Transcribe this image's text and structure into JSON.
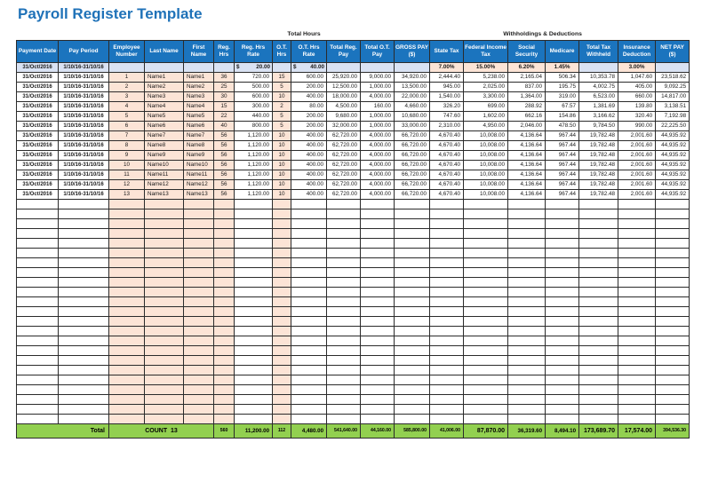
{
  "title": "Payroll Register Template",
  "bands": {
    "total_hours": "Total Hours",
    "withholdings": "Withholdings & Deductions"
  },
  "columns": [
    "Payment Date",
    "Pay Period",
    "Employee Number",
    "Last Name",
    "First Name",
    "Reg. Hrs",
    "Reg. Hrs Rate",
    "O.T. Hrs",
    "O.T. Hrs Rate",
    "Total Reg. Pay",
    "Total O.T. Pay",
    "GROSS PAY ($)",
    "State Tax",
    "Federal Income Tax",
    "Social Security",
    "Medicare",
    "Total Tax Withheld",
    "Insurance Deduction",
    "NET PAY ($)"
  ],
  "rate_row": {
    "payment_date": "31/Oct/2016",
    "pay_period": "1/10/16-31/10/16",
    "currency_symbol": "$",
    "reg_hrs_rate": "20.00",
    "ot_hrs_rate": "40.00",
    "state_tax_pct": "7.00%",
    "federal_income_tax_pct": "15.00%",
    "social_security_pct": "6.20%",
    "medicare_pct": "1.45%",
    "insurance_deduction_pct": "3.00%"
  },
  "rows": [
    {
      "payment_date": "31/Oct/2016",
      "pay_period": "1/10/16-31/10/16",
      "employee_number": "1",
      "last_name": "Name1",
      "first_name": "Name1",
      "reg_hrs": "36",
      "reg_hrs_rate": "720.00",
      "ot_hrs": "15",
      "ot_hrs_rate": "600.00",
      "total_reg_pay": "25,920.00",
      "total_ot_pay": "9,000.00",
      "gross_pay": "34,920.00",
      "state_tax": "2,444.40",
      "federal_income_tax": "5,238.00",
      "social_security": "2,165.04",
      "medicare": "506.34",
      "total_tax_withheld": "10,353.78",
      "insurance_deduction": "1,047.60",
      "net_pay": "23,518.62"
    },
    {
      "payment_date": "31/Oct/2016",
      "pay_period": "1/10/16-31/10/16",
      "employee_number": "2",
      "last_name": "Name2",
      "first_name": "Name2",
      "reg_hrs": "25",
      "reg_hrs_rate": "500.00",
      "ot_hrs": "5",
      "ot_hrs_rate": "200.00",
      "total_reg_pay": "12,500.00",
      "total_ot_pay": "1,000.00",
      "gross_pay": "13,500.00",
      "state_tax": "945.00",
      "federal_income_tax": "2,025.00",
      "social_security": "837.00",
      "medicare": "195.75",
      "total_tax_withheld": "4,002.75",
      "insurance_deduction": "405.00",
      "net_pay": "9,092.25"
    },
    {
      "payment_date": "31/Oct/2016",
      "pay_period": "1/10/16-31/10/16",
      "employee_number": "3",
      "last_name": "Name3",
      "first_name": "Name3",
      "reg_hrs": "30",
      "reg_hrs_rate": "600.00",
      "ot_hrs": "10",
      "ot_hrs_rate": "400.00",
      "total_reg_pay": "18,000.00",
      "total_ot_pay": "4,000.00",
      "gross_pay": "22,000.00",
      "state_tax": "1,540.00",
      "federal_income_tax": "3,300.00",
      "social_security": "1,364.00",
      "medicare": "319.00",
      "total_tax_withheld": "6,523.00",
      "insurance_deduction": "660.00",
      "net_pay": "14,817.00"
    },
    {
      "payment_date": "31/Oct/2016",
      "pay_period": "1/10/16-31/10/16",
      "employee_number": "4",
      "last_name": "Name4",
      "first_name": "Name4",
      "reg_hrs": "15",
      "reg_hrs_rate": "300.00",
      "ot_hrs": "2",
      "ot_hrs_rate": "80.00",
      "total_reg_pay": "4,500.00",
      "total_ot_pay": "160.00",
      "gross_pay": "4,660.00",
      "state_tax": "326.20",
      "federal_income_tax": "699.00",
      "social_security": "288.92",
      "medicare": "67.57",
      "total_tax_withheld": "1,381.69",
      "insurance_deduction": "139.80",
      "net_pay": "3,138.51"
    },
    {
      "payment_date": "31/Oct/2016",
      "pay_period": "1/10/16-31/10/16",
      "employee_number": "5",
      "last_name": "Name5",
      "first_name": "Name5",
      "reg_hrs": "22",
      "reg_hrs_rate": "440.00",
      "ot_hrs": "5",
      "ot_hrs_rate": "200.00",
      "total_reg_pay": "9,680.00",
      "total_ot_pay": "1,000.00",
      "gross_pay": "10,680.00",
      "state_tax": "747.60",
      "federal_income_tax": "1,602.00",
      "social_security": "662.16",
      "medicare": "154.86",
      "total_tax_withheld": "3,166.62",
      "insurance_deduction": "320.40",
      "net_pay": "7,192.98"
    },
    {
      "payment_date": "31/Oct/2016",
      "pay_period": "1/10/16-31/10/16",
      "employee_number": "6",
      "last_name": "Name6",
      "first_name": "Name6",
      "reg_hrs": "40",
      "reg_hrs_rate": "800.00",
      "ot_hrs": "5",
      "ot_hrs_rate": "200.00",
      "total_reg_pay": "32,000.00",
      "total_ot_pay": "1,000.00",
      "gross_pay": "33,000.00",
      "state_tax": "2,310.00",
      "federal_income_tax": "4,950.00",
      "social_security": "2,046.00",
      "medicare": "478.50",
      "total_tax_withheld": "9,784.50",
      "insurance_deduction": "990.00",
      "net_pay": "22,225.50"
    },
    {
      "payment_date": "31/Oct/2016",
      "pay_period": "1/10/16-31/10/16",
      "employee_number": "7",
      "last_name": "Name7",
      "first_name": "Name7",
      "reg_hrs": "56",
      "reg_hrs_rate": "1,120.00",
      "ot_hrs": "10",
      "ot_hrs_rate": "400.00",
      "total_reg_pay": "62,720.00",
      "total_ot_pay": "4,000.00",
      "gross_pay": "66,720.00",
      "state_tax": "4,670.40",
      "federal_income_tax": "10,008.00",
      "social_security": "4,136.64",
      "medicare": "967.44",
      "total_tax_withheld": "19,782.48",
      "insurance_deduction": "2,001.60",
      "net_pay": "44,935.92"
    },
    {
      "payment_date": "31/Oct/2016",
      "pay_period": "1/10/16-31/10/16",
      "employee_number": "8",
      "last_name": "Name8",
      "first_name": "Name8",
      "reg_hrs": "56",
      "reg_hrs_rate": "1,120.00",
      "ot_hrs": "10",
      "ot_hrs_rate": "400.00",
      "total_reg_pay": "62,720.00",
      "total_ot_pay": "4,000.00",
      "gross_pay": "66,720.00",
      "state_tax": "4,670.40",
      "federal_income_tax": "10,008.00",
      "social_security": "4,136.64",
      "medicare": "967.44",
      "total_tax_withheld": "19,782.48",
      "insurance_deduction": "2,001.60",
      "net_pay": "44,935.92"
    },
    {
      "payment_date": "31/Oct/2016",
      "pay_period": "1/10/16-31/10/16",
      "employee_number": "9",
      "last_name": "Name9",
      "first_name": "Name9",
      "reg_hrs": "56",
      "reg_hrs_rate": "1,120.00",
      "ot_hrs": "10",
      "ot_hrs_rate": "400.00",
      "total_reg_pay": "62,720.00",
      "total_ot_pay": "4,000.00",
      "gross_pay": "66,720.00",
      "state_tax": "4,670.40",
      "federal_income_tax": "10,008.00",
      "social_security": "4,136.64",
      "medicare": "967.44",
      "total_tax_withheld": "19,782.48",
      "insurance_deduction": "2,001.60",
      "net_pay": "44,935.92"
    },
    {
      "payment_date": "31/Oct/2016",
      "pay_period": "1/10/16-31/10/16",
      "employee_number": "10",
      "last_name": "Name10",
      "first_name": "Name10",
      "reg_hrs": "56",
      "reg_hrs_rate": "1,120.00",
      "ot_hrs": "10",
      "ot_hrs_rate": "400.00",
      "total_reg_pay": "62,720.00",
      "total_ot_pay": "4,000.00",
      "gross_pay": "66,720.00",
      "state_tax": "4,670.40",
      "federal_income_tax": "10,008.00",
      "social_security": "4,136.64",
      "medicare": "967.44",
      "total_tax_withheld": "19,782.48",
      "insurance_deduction": "2,001.60",
      "net_pay": "44,935.92"
    },
    {
      "payment_date": "31/Oct/2016",
      "pay_period": "1/10/16-31/10/16",
      "employee_number": "11",
      "last_name": "Name11",
      "first_name": "Name11",
      "reg_hrs": "56",
      "reg_hrs_rate": "1,120.00",
      "ot_hrs": "10",
      "ot_hrs_rate": "400.00",
      "total_reg_pay": "62,720.00",
      "total_ot_pay": "4,000.00",
      "gross_pay": "66,720.00",
      "state_tax": "4,670.40",
      "federal_income_tax": "10,008.00",
      "social_security": "4,136.64",
      "medicare": "967.44",
      "total_tax_withheld": "19,782.48",
      "insurance_deduction": "2,001.60",
      "net_pay": "44,935.92"
    },
    {
      "payment_date": "31/Oct/2016",
      "pay_period": "1/10/16-31/10/16",
      "employee_number": "12",
      "last_name": "Name12",
      "first_name": "Name12",
      "reg_hrs": "56",
      "reg_hrs_rate": "1,120.00",
      "ot_hrs": "10",
      "ot_hrs_rate": "400.00",
      "total_reg_pay": "62,720.00",
      "total_ot_pay": "4,000.00",
      "gross_pay": "66,720.00",
      "state_tax": "4,670.40",
      "federal_income_tax": "10,008.00",
      "social_security": "4,136.64",
      "medicare": "967.44",
      "total_tax_withheld": "19,782.48",
      "insurance_deduction": "2,001.60",
      "net_pay": "44,935.92"
    },
    {
      "payment_date": "31/Oct/2016",
      "pay_period": "1/10/16-31/10/16",
      "employee_number": "13",
      "last_name": "Name13",
      "first_name": "Name13",
      "reg_hrs": "56",
      "reg_hrs_rate": "1,120.00",
      "ot_hrs": "10",
      "ot_hrs_rate": "400.00",
      "total_reg_pay": "62,720.00",
      "total_ot_pay": "4,000.00",
      "gross_pay": "66,720.00",
      "state_tax": "4,670.40",
      "federal_income_tax": "10,008.00",
      "social_security": "4,136.64",
      "medicare": "967.44",
      "total_tax_withheld": "19,782.48",
      "insurance_deduction": "2,001.60",
      "net_pay": "44,935.92"
    }
  ],
  "empty_row_count": 23,
  "total_row": {
    "label": "Total",
    "count": "COUNT  13",
    "reg_hrs": "560",
    "reg_hrs_rate": "11,200.00",
    "ot_hrs": "112",
    "ot_hrs_rate": "4,480.00",
    "total_reg_pay": "541,640.00",
    "total_ot_pay": "44,160.00",
    "gross_pay": "585,800.00",
    "state_tax": "41,006.00",
    "federal_income_tax": "87,870.00",
    "social_security": "36,319.60",
    "medicare": "8,494.10",
    "total_tax_withheld": "173,689.70",
    "insurance_deduction": "17,574.00",
    "net_pay": "394,536.30"
  },
  "colors": {
    "title_blue": "#1F72B8",
    "header_blue": "#1B74BE",
    "band_orange": "#F4B183",
    "band_green": "#92D050",
    "total_row_green": "#92D050",
    "cell_peach": "#FCE4D6",
    "cell_light_blue": "#D9E2F3",
    "grid": "#2B2B2B"
  }
}
